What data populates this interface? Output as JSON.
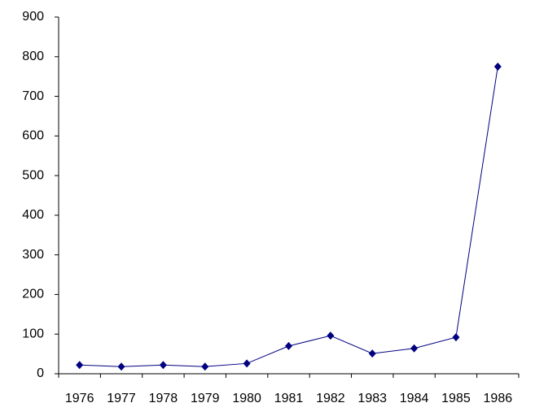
{
  "chart_data": {
    "type": "line",
    "categories": [
      "1976",
      "1977",
      "1978",
      "1979",
      "1980",
      "1981",
      "1982",
      "1983",
      "1984",
      "1985",
      "1986"
    ],
    "values": [
      22,
      18,
      22,
      18,
      26,
      70,
      96,
      51,
      64,
      92,
      775
    ],
    "color": "#000080",
    "ylim": [
      0,
      900
    ],
    "yticks": [
      0,
      100,
      200,
      300,
      400,
      500,
      600,
      700,
      800,
      900
    ],
    "grid": false
  }
}
